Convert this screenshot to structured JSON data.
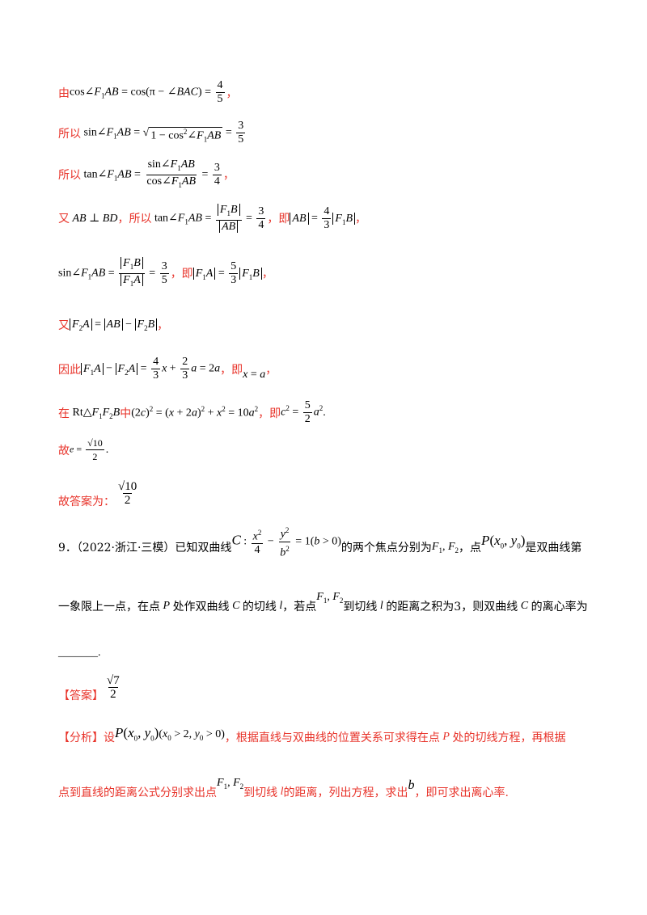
{
  "s1": {
    "pre": "由",
    "post": "，"
  },
  "s2": {
    "pre": "所以"
  },
  "s3": {
    "pre": "所以",
    "post": "，"
  },
  "s4": {
    "pre": "又",
    "mid": "，所以",
    "mid2": "，即",
    "post": "，"
  },
  "s5": {
    "mid": "，即",
    "post": "，"
  },
  "s6": {
    "pre": "又",
    "post": "，"
  },
  "s7": {
    "pre": "因此",
    "mid": "，即",
    "post": "，"
  },
  "s8": {
    "pre": "在",
    "mid": "中",
    "mid2": "，即",
    "post": "."
  },
  "s9": {
    "pre": "故",
    "post": "."
  },
  "s10": {
    "pre": "故答案为："
  },
  "q9": {
    "line1_a": "9．（2022·浙江·三模）已知双曲线",
    "line1_b": "的两个焦点分别为",
    "line1_c": "，点",
    "line1_d": "是双曲线第",
    "line2_a": "一象限上一点，在点",
    "line2_b": "处作双曲线",
    "line2_c": "的切线",
    "line2_d": "，若点",
    "line2_e": "到切线",
    "line2_f": "的距离之积为3，则双曲线",
    "line2_g": "的离心率为",
    "blank": "_______."
  },
  "answer": {
    "label": "【答案】"
  },
  "analysis": {
    "label": "【分析】",
    "t1": "设",
    "t2": "，根据直线与双曲线的位置关系可求得在点",
    "t3": "处的切线方程，再根据",
    "t4": "点到直线的距离公式分别求出点",
    "t5": "到切线",
    "t6": "的距离，列出方程，求出",
    "t7": "，即可求出离心率."
  }
}
